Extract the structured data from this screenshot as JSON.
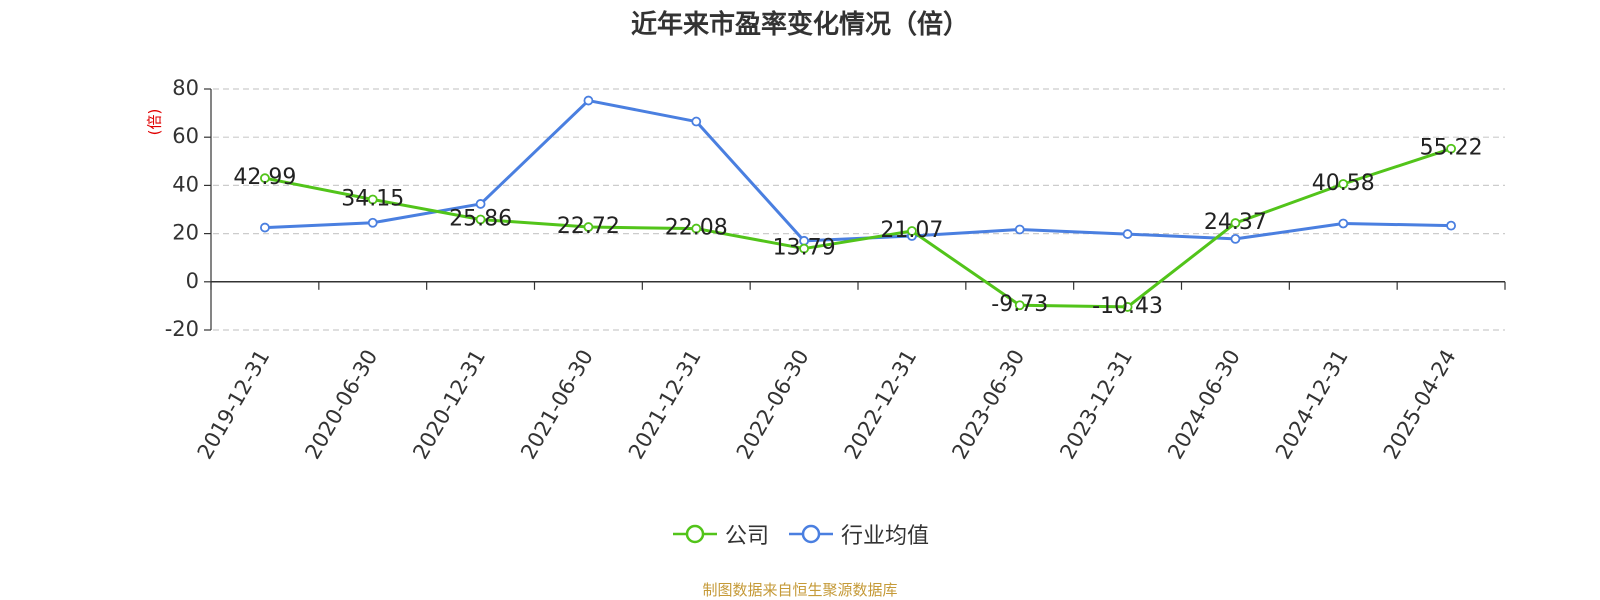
{
  "title": "近年来市盈率变化情况（倍）",
  "source_note": "制图数据来自恒生聚源数据库",
  "colors": {
    "company": "#52c41a",
    "industry": "#4a7fe0",
    "ylabel": "#e00000",
    "grid": "#cccccc",
    "source": "#c59a38"
  },
  "chart_data": {
    "type": "line",
    "title": "近年来市盈率变化情况（倍）",
    "ylabel": "(倍)",
    "xlabel": "",
    "ylim": [
      -20,
      80
    ],
    "yticks": [
      -20,
      0,
      20,
      40,
      60,
      80
    ],
    "grid": true,
    "legend_position": "bottom-center",
    "categories": [
      "2019-12-31",
      "2020-06-30",
      "2020-12-31",
      "2021-06-30",
      "2021-12-31",
      "2022-06-30",
      "2022-12-31",
      "2023-06-30",
      "2023-12-31",
      "2024-06-30",
      "2024-12-31",
      "2025-04-24"
    ],
    "series": [
      {
        "name": "公司",
        "color": "#52c41a",
        "values": [
          42.99,
          34.15,
          25.86,
          22.72,
          22.08,
          13.79,
          21.07,
          -9.73,
          -10.43,
          24.37,
          40.58,
          55.22
        ],
        "labels": [
          "42.99",
          "34.15",
          "25.86",
          "22.72",
          "22.08",
          "13.79",
          "21.07",
          "-9.73",
          "-10.43",
          "24.37",
          "40.58",
          "55.22"
        ]
      },
      {
        "name": "行业均值",
        "color": "#4a7fe0",
        "values": [
          22.5,
          24.5,
          32.3,
          75.2,
          66.5,
          17.0,
          19.0,
          21.7,
          19.8,
          17.8,
          24.2,
          23.3
        ]
      }
    ]
  }
}
